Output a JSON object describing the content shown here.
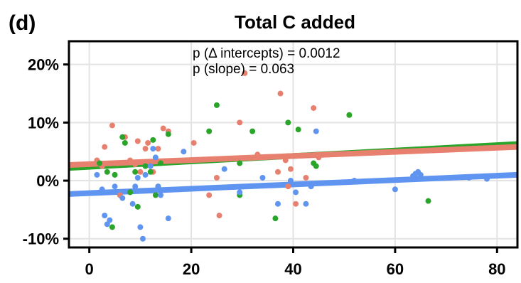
{
  "panel_label": "(d)",
  "chart_data": {
    "type": "scatter",
    "title": "Total C added",
    "xlabel": "",
    "ylabel": "",
    "xlim": [
      -4,
      84
    ],
    "ylim": [
      -11.5,
      24
    ],
    "x_ticks": [
      0,
      20,
      40,
      60,
      80
    ],
    "x_tick_labels": [
      "0",
      "20",
      "40",
      "60",
      "80"
    ],
    "y_ticks": [
      -10,
      0,
      10,
      20
    ],
    "y_tick_labels": [
      "-10%",
      "0%",
      "10%",
      "20%"
    ],
    "grid": true,
    "annotations": [
      "p (Δ intercepts) = 0.0012",
      "p (slope) = 0.063"
    ],
    "series": [
      {
        "color": "#e8806f",
        "points": [
          [
            1.5,
            3.5
          ],
          [
            2.5,
            2.5
          ],
          [
            3.0,
            5.8
          ],
          [
            4.5,
            9.5
          ],
          [
            5.5,
            3.0
          ],
          [
            6.0,
            -2.5
          ],
          [
            7.0,
            7.5
          ],
          [
            8.0,
            3.5
          ],
          [
            9.0,
            2.8
          ],
          [
            9.5,
            6.8
          ],
          [
            10.0,
            1.5
          ],
          [
            11.0,
            5.5
          ],
          [
            11.5,
            6.5
          ],
          [
            12.5,
            1.5
          ],
          [
            13.5,
            5.5
          ],
          [
            14.5,
            9.0
          ],
          [
            15.5,
            8.5
          ],
          [
            20.5,
            6.5
          ],
          [
            23.5,
            -2.5
          ],
          [
            25.0,
            0.5
          ],
          [
            25.5,
            -6.0
          ],
          [
            29.5,
            10.0
          ],
          [
            30.5,
            18.5
          ],
          [
            33.0,
            4.5
          ],
          [
            37.0,
            1.5
          ],
          [
            37.5,
            15.0
          ],
          [
            38.5,
            3.5
          ],
          [
            39.0,
            -1.0
          ],
          [
            39.5,
            2.0
          ],
          [
            40.5,
            -4.0
          ],
          [
            42.5,
            0.5
          ],
          [
            44.0,
            12.5
          ],
          [
            45.0,
            4.0
          ]
        ]
      },
      {
        "color": "#2aa52a",
        "points": [
          [
            2.0,
            3.0
          ],
          [
            3.5,
            1.5
          ],
          [
            4.5,
            -8.0
          ],
          [
            5.0,
            1.0
          ],
          [
            6.5,
            7.5
          ],
          [
            7.0,
            6.5
          ],
          [
            8.0,
            -2.0
          ],
          [
            9.5,
            -4.5
          ],
          [
            9.0,
            1.5
          ],
          [
            11.0,
            2.5
          ],
          [
            12.0,
            1.5
          ],
          [
            12.5,
            7.0
          ],
          [
            13.0,
            -2.5
          ],
          [
            13.5,
            -1.0
          ],
          [
            14.0,
            3.0
          ],
          [
            15.5,
            8.0
          ],
          [
            23.5,
            8.5
          ],
          [
            25.0,
            13.0
          ],
          [
            29.5,
            3.0
          ],
          [
            29.5,
            -2.5
          ],
          [
            32.0,
            8.5
          ],
          [
            36.5,
            -6.5
          ],
          [
            39.0,
            10.0
          ],
          [
            41.0,
            8.8
          ],
          [
            44.0,
            3.0
          ],
          [
            44.5,
            2.5
          ],
          [
            51.0,
            11.3
          ],
          [
            66.5,
            -3.5
          ]
        ]
      },
      {
        "color": "#5f95f0",
        "points": [
          [
            1.5,
            1.0
          ],
          [
            2.5,
            -1.5
          ],
          [
            3.0,
            -6.0
          ],
          [
            3.5,
            -7.5
          ],
          [
            4.0,
            -6.8
          ],
          [
            5.0,
            -1.0
          ],
          [
            6.5,
            -3.0
          ],
          [
            8.5,
            -4.0
          ],
          [
            9.0,
            -1.0
          ],
          [
            9.5,
            0.5
          ],
          [
            10.0,
            -8.0
          ],
          [
            10.5,
            -10.0
          ],
          [
            11.0,
            1.0
          ],
          [
            12.0,
            2.5
          ],
          [
            12.5,
            5.5
          ],
          [
            13.0,
            4.0
          ],
          [
            13.5,
            -1.0
          ],
          [
            14.0,
            -2.5
          ],
          [
            15.5,
            -6.5
          ],
          [
            18.5,
            5.0
          ],
          [
            26.5,
            2.0
          ],
          [
            29.5,
            -2.0
          ],
          [
            34.0,
            0.5
          ],
          [
            37.0,
            -4.0
          ],
          [
            39.5,
            0.0
          ],
          [
            40.5,
            -2.0
          ],
          [
            42.5,
            -4.0
          ],
          [
            43.5,
            -1.0
          ],
          [
            44.5,
            8.5
          ],
          [
            52.0,
            0.0
          ],
          [
            60.0,
            -1.5
          ],
          [
            63.5,
            0.8
          ],
          [
            64.0,
            1.2
          ],
          [
            64.5,
            1.5
          ],
          [
            65.0,
            1.0
          ],
          [
            64.0,
            0.5
          ],
          [
            74.5,
            0.5
          ],
          [
            78.0,
            0.3
          ]
        ]
      }
    ],
    "trend_lines": [
      {
        "color": "#2aa52a",
        "x": [
          -4,
          84
        ],
        "y": [
          2.2,
          6.3
        ]
      },
      {
        "color": "#e8806f",
        "x": [
          -4,
          84
        ],
        "y": [
          2.7,
          5.8
        ]
      },
      {
        "color": "#5f95f0",
        "x": [
          -4,
          84
        ],
        "y": [
          -2.3,
          1.0
        ]
      }
    ]
  }
}
